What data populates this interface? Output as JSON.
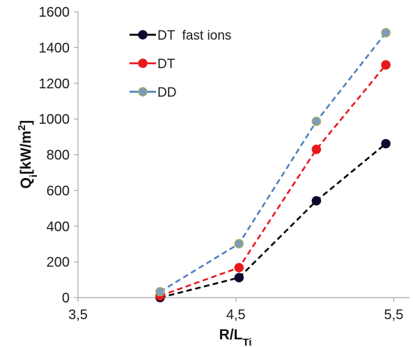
{
  "chart_data": {
    "type": "line",
    "title": "",
    "xlabel": {
      "main": "R/L",
      "sub": "Ti"
    },
    "ylabel": {
      "main": "Q",
      "sub": "i",
      "rest": "[kW/m",
      "sup": "2",
      "end": "]"
    },
    "xlim": [
      3.5,
      5.6
    ],
    "ylim": [
      0,
      1600
    ],
    "xticks": [
      3.5,
      4.5,
      5.5
    ],
    "xtick_labels": [
      "3,5",
      "4,5",
      "5,5"
    ],
    "yticks": [
      0,
      200,
      400,
      600,
      800,
      1000,
      1200,
      1400,
      1600
    ],
    "ytick_labels": [
      "0",
      "200",
      "400",
      "600",
      "800",
      "1000",
      "1200",
      "1400",
      "1600"
    ],
    "grid": false,
    "legend_position": "top-left",
    "series": [
      {
        "name": "DT  fast ions",
        "color": "#000000",
        "marker_fill": "#0a0a2e",
        "x": [
          4.02,
          4.52,
          5.01,
          5.45
        ],
        "y": [
          0,
          112,
          542,
          862
        ]
      },
      {
        "name": "DT",
        "color": "#e8191c",
        "marker_fill": "#e8191c",
        "x": [
          4.02,
          4.52,
          5.01,
          5.45
        ],
        "y": [
          10,
          168,
          830,
          1303
        ]
      },
      {
        "name": "DD",
        "color": "#4f81bd",
        "marker_fill": "#7d9ac0",
        "marker_edge": "#9fae5a",
        "x": [
          4.02,
          4.52,
          5.01,
          5.45
        ],
        "y": [
          33,
          302,
          987,
          1483
        ]
      }
    ]
  }
}
